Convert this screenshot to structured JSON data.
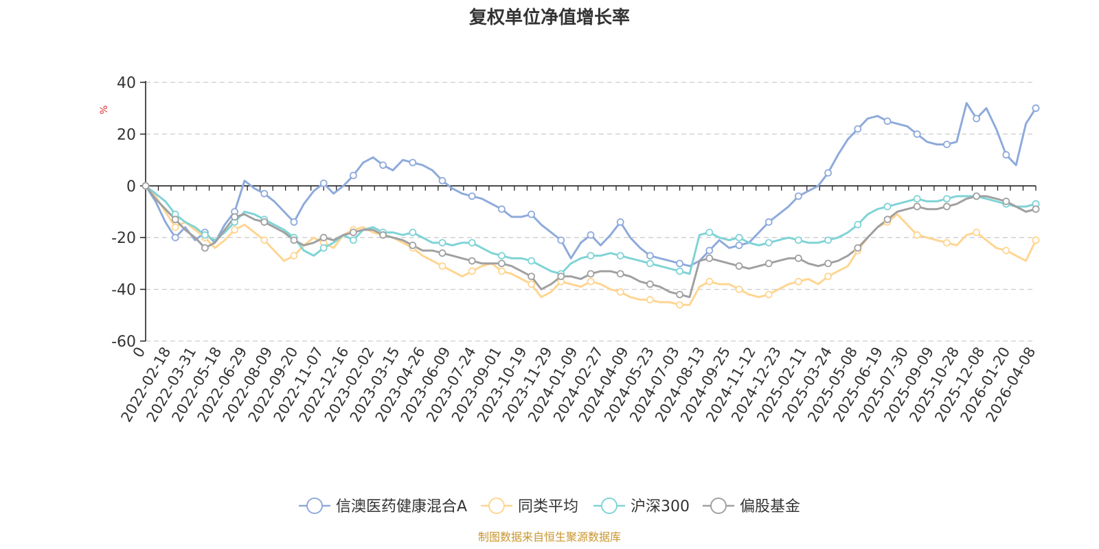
{
  "chart_data": {
    "type": "line",
    "title": "复权单位净值增长率",
    "ylabel": "%",
    "ylim": [
      -60,
      40
    ],
    "yticks": [
      40,
      20,
      0,
      -20,
      -40,
      -60
    ],
    "x_tick_labels": [
      "0",
      "2022-02-18",
      "2022-03-31",
      "2022-05-18",
      "2022-06-29",
      "2022-08-09",
      "2022-09-20",
      "2022-11-07",
      "2022-12-16",
      "2023-02-02",
      "2023-03-15",
      "2023-04-26",
      "2023-06-09",
      "2023-07-24",
      "2023-09-01",
      "2023-10-19",
      "2023-11-29",
      "2024-01-09",
      "2024-02-27",
      "2024-04-09",
      "2024-05-23",
      "2024-07-03",
      "2024-08-13",
      "2024-09-25",
      "2024-11-12",
      "2024-12-23",
      "2025-02-11",
      "2025-03-24",
      "2025-05-08",
      "2025-06-19",
      "2025-07-30",
      "2025-09-09",
      "2025-10-28",
      "2025-12-08",
      "2026-01-20",
      "2026-04-08"
    ],
    "source": "制图数据来自恒生聚源数据库",
    "series": [
      {
        "name": "信澳医药健康混合A",
        "color": "#8eaadb",
        "values": [
          0,
          -6,
          -14,
          -20,
          -16,
          -21,
          -18,
          -22,
          -15,
          -10,
          2,
          -1,
          -3,
          -6,
          -10,
          -14,
          -7,
          -2,
          1,
          -3,
          0,
          4,
          9,
          11,
          8,
          6,
          10,
          9,
          8,
          6,
          2,
          -1,
          -3,
          -4,
          -5,
          -7,
          -9,
          -12,
          -12,
          -11,
          -15,
          -18,
          -21,
          -28,
          -22,
          -19,
          -23,
          -19,
          -14,
          -20,
          -24,
          -27,
          -28,
          -29,
          -30,
          -31,
          -29,
          -25,
          -21,
          -24,
          -23,
          -22,
          -18,
          -14,
          -11,
          -8,
          -4,
          -2,
          0,
          5,
          12,
          18,
          22,
          26,
          27,
          25,
          24,
          23,
          20,
          17,
          16,
          16,
          17,
          32,
          26,
          30,
          22,
          12,
          8,
          24,
          30
        ]
      },
      {
        "name": "同类平均",
        "color": "#ffd591",
        "values": [
          0,
          -4,
          -10,
          -16,
          -14,
          -17,
          -20,
          -24,
          -21,
          -17,
          -15,
          -18,
          -21,
          -25,
          -29,
          -27,
          -23,
          -20,
          -22,
          -24,
          -19,
          -17,
          -16,
          -18,
          -19,
          -20,
          -22,
          -24,
          -27,
          -29,
          -31,
          -33,
          -35,
          -33,
          -31,
          -30,
          -33,
          -34,
          -36,
          -38,
          -43,
          -41,
          -37,
          -38,
          -39,
          -37,
          -38,
          -40,
          -41,
          -43,
          -44,
          -44,
          -45,
          -45,
          -46,
          -46,
          -39,
          -37,
          -38,
          -38,
          -40,
          -42,
          -43,
          -42,
          -40,
          -38,
          -37,
          -36,
          -38,
          -35,
          -33,
          -31,
          -25,
          -20,
          -16,
          -14,
          -11,
          -15,
          -19,
          -20,
          -21,
          -22,
          -23,
          -19,
          -18,
          -21,
          -24,
          -25,
          -27,
          -29,
          -21
        ]
      },
      {
        "name": "沪深300",
        "color": "#7fd3d6",
        "values": [
          0,
          -3,
          -6,
          -11,
          -14,
          -16,
          -19,
          -21,
          -18,
          -14,
          -10,
          -11,
          -13,
          -15,
          -17,
          -20,
          -25,
          -27,
          -24,
          -22,
          -19,
          -21,
          -17,
          -16,
          -18,
          -18,
          -19,
          -18,
          -20,
          -22,
          -22,
          -23,
          -22,
          -22,
          -24,
          -26,
          -27,
          -28,
          -28,
          -29,
          -31,
          -33,
          -34,
          -30,
          -28,
          -27,
          -27,
          -26,
          -27,
          -28,
          -29,
          -30,
          -31,
          -32,
          -33,
          -34,
          -19,
          -18,
          -20,
          -21,
          -20,
          -22,
          -23,
          -22,
          -21,
          -20,
          -21,
          -22,
          -22,
          -21,
          -20,
          -18,
          -15,
          -11,
          -9,
          -8,
          -7,
          -6,
          -5,
          -6,
          -6,
          -5,
          -4,
          -4,
          -4,
          -5,
          -6,
          -7,
          -8,
          -8,
          -7
        ]
      },
      {
        "name": "偏股基金",
        "color": "#a0a0a0",
        "values": [
          0,
          -5,
          -9,
          -13,
          -17,
          -20,
          -24,
          -22,
          -17,
          -12,
          -11,
          -13,
          -14,
          -16,
          -18,
          -21,
          -23,
          -22,
          -20,
          -21,
          -19,
          -18,
          -17,
          -17,
          -19,
          -20,
          -21,
          -23,
          -25,
          -25,
          -26,
          -27,
          -28,
          -29,
          -30,
          -30,
          -30,
          -31,
          -33,
          -35,
          -40,
          -38,
          -35,
          -35,
          -36,
          -34,
          -33,
          -33,
          -34,
          -35,
          -37,
          -38,
          -39,
          -41,
          -42,
          -43,
          -29,
          -28,
          -29,
          -30,
          -31,
          -32,
          -31,
          -30,
          -29,
          -28,
          -28,
          -30,
          -31,
          -30,
          -29,
          -27,
          -24,
          -20,
          -16,
          -13,
          -10,
          -9,
          -8,
          -9,
          -9,
          -8,
          -7,
          -5,
          -4,
          -4,
          -5,
          -6,
          -8,
          -10,
          -9
        ]
      }
    ]
  }
}
